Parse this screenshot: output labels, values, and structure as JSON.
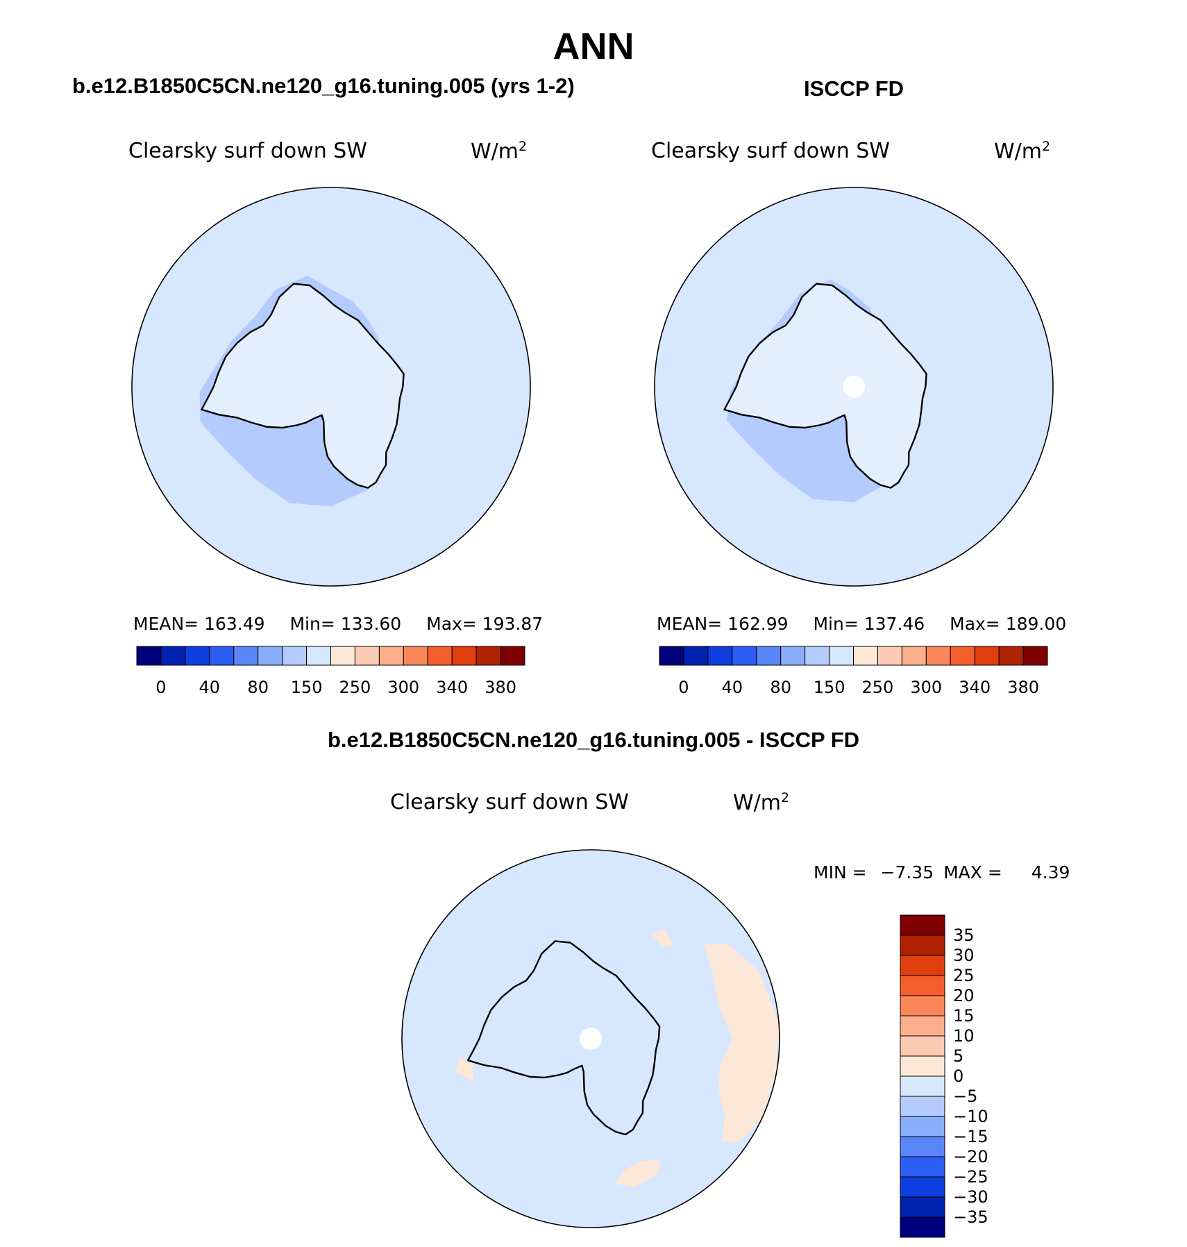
{
  "page": {
    "title": "ANN",
    "diff_title": "b.e12.B1850C5CN.ne120_g16.tuning.005 - ISCCP FD"
  },
  "colors": {
    "blues": [
      "#00007f",
      "#0022b0",
      "#0f3ee0",
      "#2d5ef5",
      "#5a86fa",
      "#8aaefc",
      "#b4cbfd",
      "#d7e7fd"
    ],
    "reds": [
      "#fde8d7",
      "#fdcbb4",
      "#fcae8a",
      "#fa865a",
      "#f55e2d",
      "#e03e0f",
      "#b02200",
      "#7f0000"
    ],
    "land": "#e4effd",
    "ocean": "#d7e7fd",
    "shelf": "#b4cbfd",
    "coast": "#000000"
  },
  "chart_data": [
    {
      "type": "heatmap",
      "projection": "south-polar-stereographic",
      "title": "b.e12.B1850C5CN.ne120_g16.tuning.005 (yrs 1-2)",
      "variable": "Clearsky surf down SW",
      "units_base": "W/m",
      "units_exp": "2",
      "stats": {
        "mean_label": "MEAN=",
        "mean": "163.49",
        "min_label": "Min=",
        "min": "133.60",
        "max_label": "Max=",
        "max": "193.87"
      },
      "colorbar": {
        "orientation": "horizontal",
        "levels": [
          "0",
          "40",
          "80",
          "150",
          "250",
          "300",
          "340",
          "380"
        ]
      },
      "missing_pole": false
    },
    {
      "type": "heatmap",
      "projection": "south-polar-stereographic",
      "title": "ISCCP FD",
      "variable": "Clearsky surf down SW",
      "units_base": "W/m",
      "units_exp": "2",
      "stats": {
        "mean_label": "MEAN=",
        "mean": "162.99",
        "min_label": "Min=",
        "min": "137.46",
        "max_label": "Max=",
        "max": "189.00"
      },
      "colorbar": {
        "orientation": "horizontal",
        "levels": [
          "0",
          "40",
          "80",
          "150",
          "250",
          "300",
          "340",
          "380"
        ]
      },
      "missing_pole": true
    },
    {
      "type": "heatmap",
      "projection": "south-polar-stereographic",
      "title": "b.e12.B1850C5CN.ne120_g16.tuning.005 - ISCCP FD",
      "variable": "Clearsky surf down SW",
      "units_base": "W/m",
      "units_exp": "2",
      "stats": {
        "min_label": "MIN =",
        "min": "−7.35",
        "max_label": "MAX =",
        "max": "4.39"
      },
      "colorbar": {
        "orientation": "vertical",
        "levels": [
          "35",
          "30",
          "25",
          "20",
          "15",
          "10",
          "5",
          "0",
          "−5",
          "−10",
          "−15",
          "−20",
          "−25",
          "−30",
          "−35"
        ]
      },
      "missing_pole": true
    }
  ]
}
